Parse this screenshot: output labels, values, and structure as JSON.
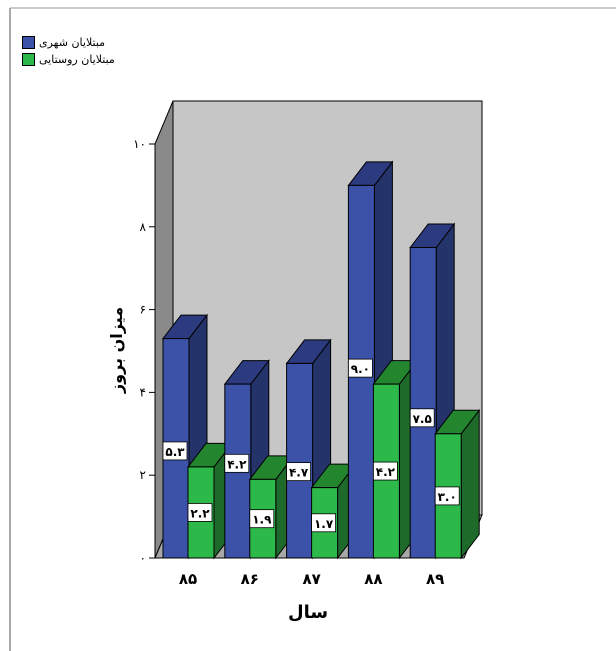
{
  "chart_data": {
    "type": "bar",
    "style": "3d-clustered",
    "title": "",
    "xlabel": "سال",
    "ylabel": "میزان بروز",
    "categories": [
      "۸۵",
      "۸۶",
      "۸۷",
      "۸۸",
      "۸۹"
    ],
    "series": [
      {
        "name": "مبتلایان شهری",
        "color": "#3b52a8",
        "values": [
          5.3,
          4.2,
          4.7,
          9.0,
          7.5
        ],
        "labels": [
          "۵.۳",
          "۴.۲",
          "۴.۷",
          "۹.۰",
          "۷.۵"
        ]
      },
      {
        "name": "مبتلایان روستایی",
        "color": "#2db84a",
        "values": [
          2.2,
          1.9,
          1.7,
          4.2,
          3.0
        ],
        "labels": [
          "۲.۲",
          "۱.۹",
          "۱.۷",
          "۴.۲",
          "۳.۰"
        ]
      }
    ],
    "ylim": [
      0,
      10
    ],
    "yticks": [
      0,
      2,
      4,
      6,
      8,
      10
    ],
    "ytick_labels": [
      "۰",
      "۲",
      "۴",
      "۶",
      "۸",
      "۱۰"
    ],
    "grid": false,
    "legend_position": "top-left"
  }
}
